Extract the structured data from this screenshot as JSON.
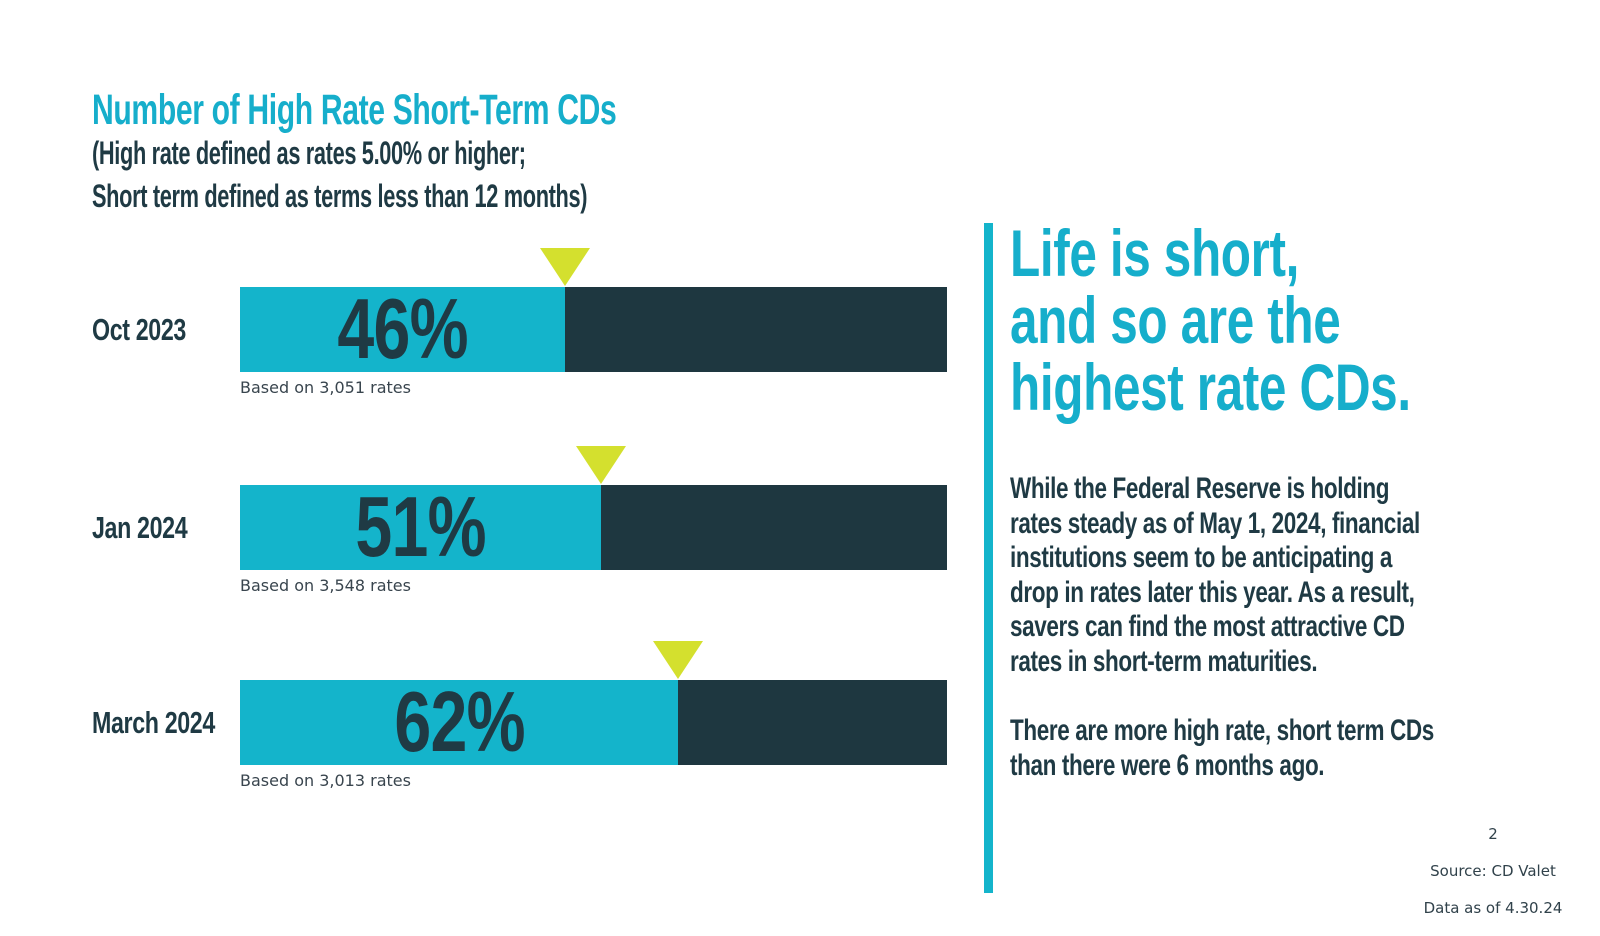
{
  "slide": {
    "chart": {
      "title": "Number of High Rate Short-Term CDs",
      "subtitle_lines": [
        "(High rate defined as rates 5.00% or higher;",
        "Short term defined as terms less than 12 months)"
      ],
      "rows": [
        {
          "label": "Oct 2023",
          "pct": 46,
          "pct_label": "46%",
          "based_on": "Based on 3,051 rates"
        },
        {
          "label": "Jan 2024",
          "pct": 51,
          "pct_label": "51%",
          "based_on": "Based on 3,548 rates"
        },
        {
          "label": "March 2024",
          "pct": 62,
          "pct_label": "62%",
          "based_on": "Based on 3,013 rates"
        }
      ]
    },
    "panel": {
      "heading_lines": [
        "Life is short,",
        "and so are the",
        "highest rate CDs."
      ],
      "para1_lines": [
        "While the Federal Reserve is holding",
        "rates steady as of May 1, 2024, financial",
        "institutions seem to be anticipating a",
        "drop in rates later this year. As a result,",
        "savers can find the most attractive CD",
        "rates in short-term maturities."
      ],
      "para2_lines": [
        "There are more high rate, short term CDs",
        "than there were 6 months ago."
      ]
    },
    "footer": {
      "page_number": "2",
      "source": "Source: CD Valet",
      "data_as_of": "Data as of 4.30.24"
    },
    "colors": {
      "brand_cyan_text": "#16AECB",
      "bar_cyan": "#14B4CB",
      "bar_dark": "#1E3740",
      "marker_green": "#D4E02E",
      "text_dark": "#1F3A44",
      "footnote_gray": "#39454E"
    }
  },
  "chart_data": {
    "type": "bar",
    "orientation": "horizontal",
    "title": "Number of High Rate Short-Term CDs",
    "subtitle": "(High rate defined as rates 5.00% or higher; Short term defined as terms less than 12 months)",
    "categories": [
      "Oct 2023",
      "Jan 2024",
      "March 2024"
    ],
    "values": [
      46,
      51,
      62
    ],
    "value_unit": "percent",
    "data_labels": [
      "46%",
      "51%",
      "62%"
    ],
    "sample_sizes": [
      "Based on 3,051 rates",
      "Based on 3,548 rates",
      "Based on 3,013 rates"
    ],
    "xlim": [
      0,
      100
    ],
    "grid": false,
    "legend": "none",
    "annotation_markers": "green triangle at each bar's percentage boundary"
  }
}
